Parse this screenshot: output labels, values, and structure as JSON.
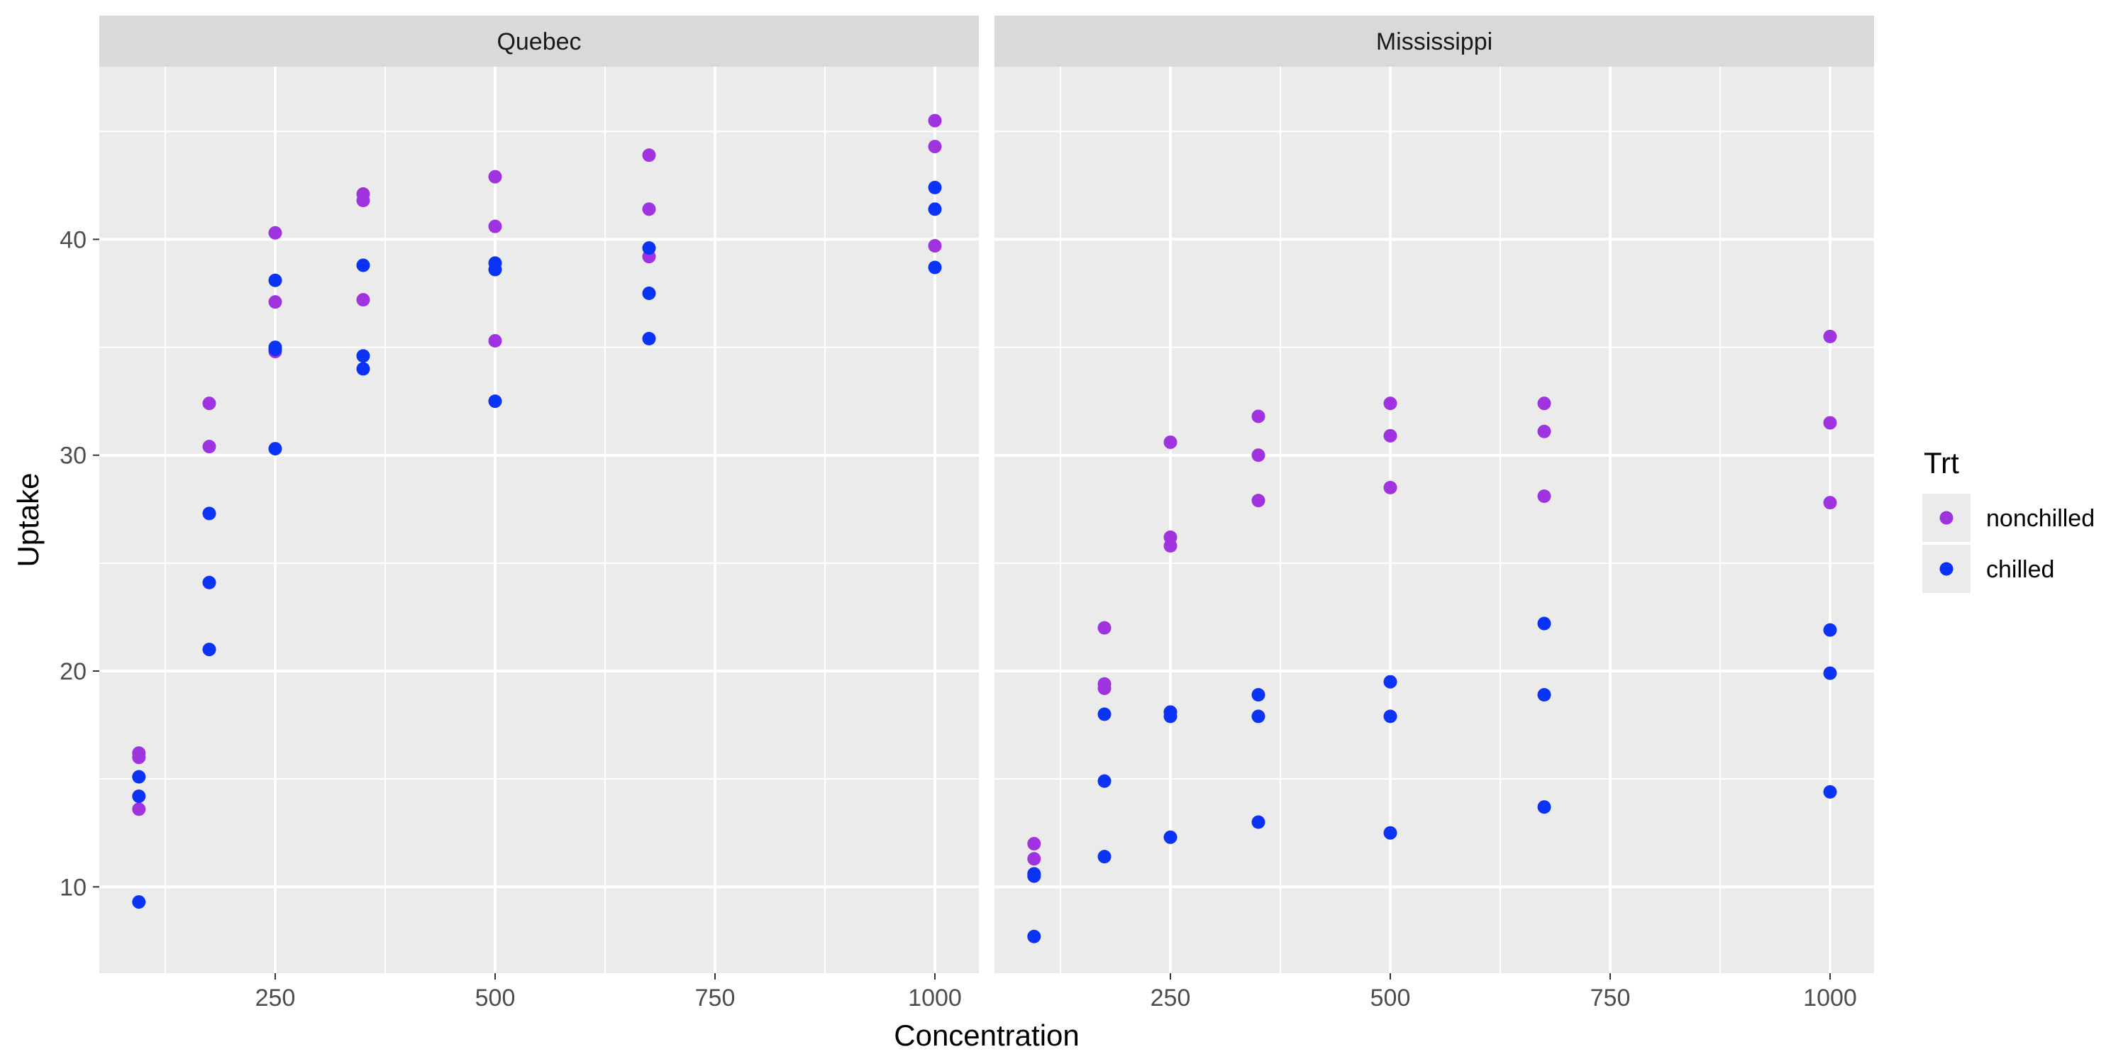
{
  "chart_data": {
    "type": "scatter",
    "xlabel": "Concentration",
    "ylabel": "Uptake",
    "xlim": [
      50,
      1050
    ],
    "ylim": [
      6,
      48
    ],
    "x_ticks": [
      250,
      500,
      750,
      1000
    ],
    "y_ticks": [
      10,
      20,
      30,
      40
    ],
    "grid": true,
    "legend": {
      "title": "Trt",
      "placement": "right",
      "entries": [
        {
          "name": "nonchilled",
          "color": "#A033E0"
        },
        {
          "name": "chilled",
          "color": "#0A33F5"
        }
      ]
    },
    "panels": [
      {
        "title": "Quebec",
        "series": [
          {
            "name": "nonchilled",
            "points": [
              [
                95,
                16.0
              ],
              [
                95,
                13.6
              ],
              [
                95,
                16.2
              ],
              [
                175,
                30.4
              ],
              [
                175,
                32.4
              ],
              [
                250,
                34.8
              ],
              [
                250,
                37.1
              ],
              [
                250,
                40.3
              ],
              [
                350,
                37.2
              ],
              [
                350,
                41.8
              ],
              [
                350,
                42.1
              ],
              [
                500,
                35.3
              ],
              [
                500,
                40.6
              ],
              [
                500,
                42.9
              ],
              [
                675,
                39.2
              ],
              [
                675,
                41.4
              ],
              [
                675,
                43.9
              ],
              [
                1000,
                39.7
              ],
              [
                1000,
                44.3
              ],
              [
                1000,
                45.5
              ]
            ]
          },
          {
            "name": "chilled",
            "points": [
              [
                95,
                14.2
              ],
              [
                95,
                9.3
              ],
              [
                95,
                15.1
              ],
              [
                175,
                24.1
              ],
              [
                175,
                27.3
              ],
              [
                175,
                21.0
              ],
              [
                250,
                30.3
              ],
              [
                250,
                35.0
              ],
              [
                250,
                38.1
              ],
              [
                250,
                34.9
              ],
              [
                350,
                34.6
              ],
              [
                350,
                38.8
              ],
              [
                350,
                34.0
              ],
              [
                500,
                32.5
              ],
              [
                500,
                38.6
              ],
              [
                500,
                38.9
              ],
              [
                675,
                35.4
              ],
              [
                675,
                37.5
              ],
              [
                675,
                39.6
              ],
              [
                1000,
                38.7
              ],
              [
                1000,
                41.4
              ],
              [
                1000,
                42.4
              ]
            ]
          }
        ]
      },
      {
        "title": "Mississippi",
        "series": [
          {
            "name": "nonchilled",
            "points": [
              [
                95,
                10.6
              ],
              [
                95,
                12.0
              ],
              [
                95,
                11.3
              ],
              [
                175,
                19.2
              ],
              [
                175,
                22.0
              ],
              [
                175,
                19.4
              ],
              [
                250,
                26.2
              ],
              [
                250,
                30.6
              ],
              [
                250,
                25.8
              ],
              [
                350,
                30.0
              ],
              [
                350,
                31.8
              ],
              [
                350,
                27.9
              ],
              [
                500,
                30.9
              ],
              [
                500,
                32.4
              ],
              [
                500,
                28.5
              ],
              [
                675,
                32.4
              ],
              [
                675,
                31.1
              ],
              [
                675,
                28.1
              ],
              [
                1000,
                35.5
              ],
              [
                1000,
                31.5
              ],
              [
                1000,
                27.8
              ]
            ]
          },
          {
            "name": "chilled",
            "points": [
              [
                95,
                10.5
              ],
              [
                95,
                7.7
              ],
              [
                95,
                10.6
              ],
              [
                175,
                14.9
              ],
              [
                175,
                11.4
              ],
              [
                175,
                18.0
              ],
              [
                250,
                18.1
              ],
              [
                250,
                12.3
              ],
              [
                250,
                17.9
              ],
              [
                350,
                18.9
              ],
              [
                350,
                13.0
              ],
              [
                350,
                17.9
              ],
              [
                500,
                19.5
              ],
              [
                500,
                12.5
              ],
              [
                500,
                17.9
              ],
              [
                675,
                22.2
              ],
              [
                675,
                13.7
              ],
              [
                675,
                18.9
              ],
              [
                1000,
                21.9
              ],
              [
                1000,
                14.4
              ],
              [
                1000,
                19.9
              ]
            ]
          }
        ]
      }
    ]
  }
}
